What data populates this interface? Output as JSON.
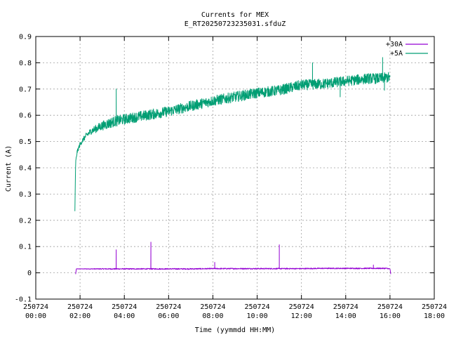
{
  "chart_data": {
    "type": "line",
    "title": "Currents for MEX",
    "subtitle": "E_RT20250723235031.sfduZ",
    "xlabel": "Time (yymmdd HH:MM)",
    "ylabel": "Current (A)",
    "xlim_hours": [
      0,
      18
    ],
    "ylim": [
      -0.1,
      0.9
    ],
    "yticks": [
      "-0.1",
      "0",
      "0.1",
      "0.2",
      "0.3",
      "0.4",
      "0.5",
      "0.6",
      "0.7",
      "0.8",
      "0.9"
    ],
    "xticks": [
      {
        "date": "250724",
        "time": "00:00"
      },
      {
        "date": "250724",
        "time": "02:00"
      },
      {
        "date": "250724",
        "time": "04:00"
      },
      {
        "date": "250724",
        "time": "06:00"
      },
      {
        "date": "250724",
        "time": "08:00"
      },
      {
        "date": "250724",
        "time": "10:00"
      },
      {
        "date": "250724",
        "time": "12:00"
      },
      {
        "date": "250724",
        "time": "14:00"
      },
      {
        "date": "250724",
        "time": "16:00"
      },
      {
        "date": "250724",
        "time": "18:00"
      }
    ],
    "grid": true,
    "legend_position": "top-right",
    "series": [
      {
        "name": "+30A",
        "color": "#9400d3",
        "noise": 0.002,
        "x": [
          "01:48",
          "01:50",
          "02:00",
          "03:00",
          "04:00",
          "05:00",
          "06:00",
          "07:00",
          "08:00",
          "09:00",
          "10:00",
          "11:00",
          "12:00",
          "13:00",
          "14:00",
          "15:00",
          "15:50",
          "16:00",
          "16:02"
        ],
        "y": [
          -0.005,
          0.015,
          0.015,
          0.015,
          0.015,
          0.015,
          0.015,
          0.015,
          0.016,
          0.016,
          0.016,
          0.016,
          0.016,
          0.017,
          0.017,
          0.017,
          0.017,
          0.015,
          -0.005
        ],
        "spikes": [
          {
            "x": "03:38",
            "y": 0.088
          },
          {
            "x": "05:12",
            "y": 0.117
          },
          {
            "x": "08:05",
            "y": 0.04
          },
          {
            "x": "11:00",
            "y": 0.107
          },
          {
            "x": "15:15",
            "y": 0.03
          }
        ]
      },
      {
        "name": "+5A",
        "color": "#009e73",
        "noise": 0.02,
        "x": [
          "01:46",
          "01:48",
          "01:52",
          "02:00",
          "02:15",
          "02:30",
          "03:00",
          "03:30",
          "04:00",
          "05:00",
          "06:00",
          "07:00",
          "08:00",
          "09:00",
          "10:00",
          "11:00",
          "12:00",
          "13:00",
          "14:00",
          "15:00",
          "15:30",
          "16:00"
        ],
        "y": [
          0.235,
          0.42,
          0.46,
          0.49,
          0.52,
          0.54,
          0.56,
          0.575,
          0.585,
          0.6,
          0.615,
          0.635,
          0.655,
          0.67,
          0.685,
          0.695,
          0.715,
          0.72,
          0.73,
          0.74,
          0.74,
          0.745
        ],
        "spikes": [
          {
            "x": "03:38",
            "y": 0.7
          },
          {
            "x": "12:30",
            "y": 0.8
          },
          {
            "x": "13:45",
            "y": 0.67
          },
          {
            "x": "15:40",
            "y": 0.82
          },
          {
            "x": "15:45",
            "y": 0.695
          }
        ]
      }
    ]
  }
}
